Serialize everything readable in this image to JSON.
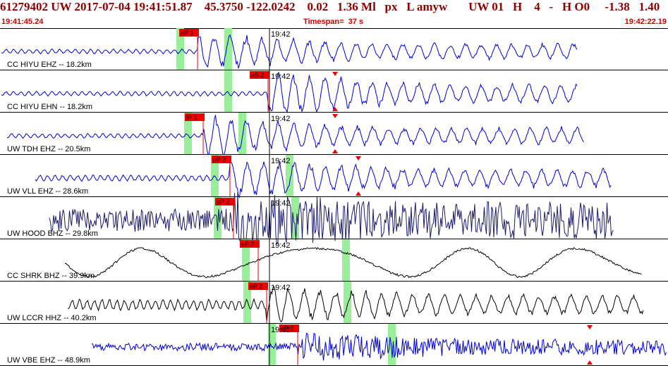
{
  "header": {
    "event_line": "61279402 UW 2017-07-04 19:41:51.87    45.3750 -122.0242    0.02   1.36 Ml   px   L amyw       UW 01   H    4   -   H O0     -1.38   1.40",
    "start_time": "19:41:45.24",
    "timespan": "Timespan=  37 s",
    "end_time": "19:42:22.19"
  },
  "colors": {
    "header_text": "#8b0000",
    "time_text": "#cc0000",
    "trace_blue": "#0000cc",
    "trace_navy": "#1a1a66",
    "trace_black": "#000000",
    "phase_red": "#ee0000",
    "window_green": "#99ee99"
  },
  "traces": [
    {
      "label": "CC HIYU EHZ -- 18.2km",
      "pick": "eP 1",
      "time_mark": "19:42",
      "color": "blue"
    },
    {
      "label": "CC HIYU EHN -- 18.2km",
      "pick": "eS 2",
      "time_mark": "19:42",
      "color": "blue"
    },
    {
      "label": "UW TDH EHZ -- 20.5km",
      "pick": "iP 1",
      "time_mark": "19:42",
      "color": "blue"
    },
    {
      "label": "UW VLL EHZ -- 28.6km",
      "pick": "eP 2",
      "time_mark": "19:42",
      "color": "blue"
    },
    {
      "label": "UW HOOD BHZ -- 29.8km",
      "pick": "eP 2",
      "time_mark": "19:42",
      "color": "navy"
    },
    {
      "label": "CC SHRK BHZ -- 39.9km",
      "pick": "eP 2",
      "time_mark": "19:42",
      "color": "black"
    },
    {
      "label": "UW LCCR HHZ -- 40.2km",
      "pick": "eP 2",
      "time_mark": "19:42",
      "color": "black"
    },
    {
      "label": "UW VBE EHZ -- 48.9km",
      "pick": "eP 2",
      "time_mark": "19:42",
      "color": "blue"
    }
  ]
}
